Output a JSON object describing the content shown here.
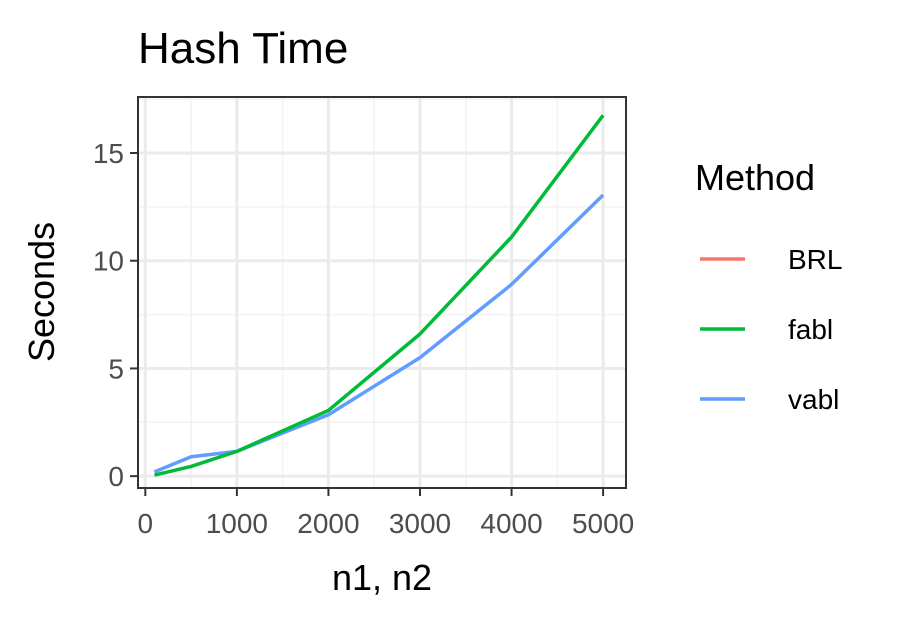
{
  "chart_data": {
    "type": "line",
    "title": "Hash Time",
    "xlabel": "n1, n2",
    "ylabel": "Seconds",
    "xlim": [
      -80,
      5250
    ],
    "ylim": [
      -0.55,
      17.6
    ],
    "x_ticks": [
      0,
      1000,
      2000,
      3000,
      4000,
      5000
    ],
    "y_ticks": [
      0,
      5,
      10,
      15
    ],
    "grid": true,
    "legend": {
      "title": "Method",
      "position": "right"
    },
    "series": [
      {
        "name": "BRL",
        "color": "#F8766D",
        "x": [],
        "y": []
      },
      {
        "name": "fabl",
        "color": "#00BA38",
        "x": [
          100,
          500,
          1000,
          2000,
          3000,
          4000,
          5000
        ],
        "y": [
          0.05,
          0.45,
          1.15,
          3.05,
          6.6,
          11.1,
          16.75
        ]
      },
      {
        "name": "vabl",
        "color": "#619CFF",
        "x": [
          100,
          500,
          1000,
          2000,
          3000,
          4000,
          5000
        ],
        "y": [
          0.2,
          0.9,
          1.15,
          2.85,
          5.5,
          8.9,
          13.05
        ]
      }
    ]
  }
}
